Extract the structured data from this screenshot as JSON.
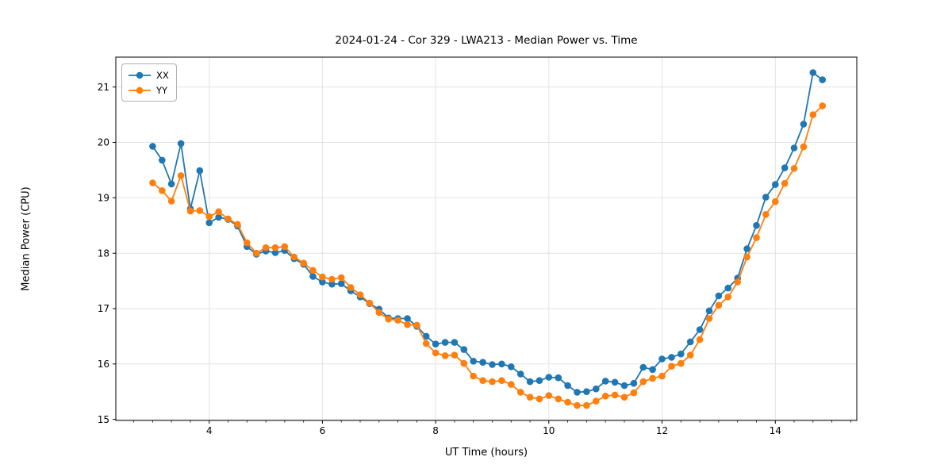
{
  "chart": {
    "title": "2024-01-24 - Cor 329 - LWA213 - Median Power vs. Time",
    "xlabel": "UT Time (hours)",
    "ylabel": "Median Power (CPU)",
    "legend": [
      {
        "label": "XX",
        "color": "#1f77b4"
      },
      {
        "label": "YY",
        "color": "#ff7f0e"
      }
    ]
  },
  "chart_data": {
    "type": "line",
    "title": "2024-01-24 - Cor 329 - LWA213 - Median Power vs. Time",
    "xlabel": "UT Time (hours)",
    "ylabel": "Median Power (CPU)",
    "xlim": [
      2.35,
      15.44
    ],
    "ylim": [
      14.98,
      21.54
    ],
    "x_major_ticks": [
      4,
      6,
      8,
      10,
      12,
      14
    ],
    "x_tick_labels": [
      "4",
      "6",
      "8",
      "10",
      "12",
      "14"
    ],
    "x_minor_tick_step": 0.3333,
    "y_major_ticks": [
      15,
      16,
      17,
      18,
      19,
      20,
      21
    ],
    "y_tick_labels": [
      "15",
      "16",
      "17",
      "18",
      "19",
      "20",
      "21"
    ],
    "grid": true,
    "grid_color": "#e3e3e3",
    "legend_position": "upper left",
    "marker": "circle",
    "x": [
      3.0,
      3.167,
      3.333,
      3.5,
      3.667,
      3.833,
      4.0,
      4.167,
      4.333,
      4.5,
      4.667,
      4.833,
      5.0,
      5.167,
      5.333,
      5.5,
      5.667,
      5.833,
      6.0,
      6.167,
      6.333,
      6.5,
      6.667,
      6.833,
      7.0,
      7.167,
      7.333,
      7.5,
      7.667,
      7.833,
      8.0,
      8.167,
      8.333,
      8.5,
      8.667,
      8.833,
      9.0,
      9.167,
      9.333,
      9.5,
      9.667,
      9.833,
      10.0,
      10.167,
      10.333,
      10.5,
      10.667,
      10.833,
      11.0,
      11.167,
      11.333,
      11.5,
      11.667,
      11.833,
      12.0,
      12.167,
      12.333,
      12.5,
      12.667,
      12.833,
      13.0,
      13.167,
      13.333,
      13.5,
      13.667,
      13.833,
      14.0,
      14.167,
      14.333,
      14.5,
      14.667,
      14.833
    ],
    "series": [
      {
        "name": "XX",
        "color": "#1f77b4",
        "values": [
          19.93,
          19.68,
          19.25,
          19.98,
          18.8,
          19.49,
          18.55,
          18.65,
          18.61,
          18.49,
          18.12,
          17.98,
          18.04,
          18.01,
          18.05,
          17.9,
          17.8,
          17.58,
          17.48,
          17.44,
          17.45,
          17.32,
          17.21,
          17.09,
          16.99,
          16.83,
          16.82,
          16.82,
          16.68,
          16.5,
          16.36,
          16.39,
          16.39,
          16.26,
          16.05,
          16.03,
          15.99,
          16.0,
          15.95,
          15.82,
          15.68,
          15.7,
          15.76,
          15.75,
          15.61,
          15.49,
          15.5,
          15.55,
          15.69,
          15.67,
          15.61,
          15.65,
          15.94,
          15.9,
          16.09,
          16.12,
          16.18,
          16.4,
          16.62,
          16.96,
          17.23,
          17.37,
          17.55,
          18.08,
          18.5,
          19.01,
          19.24,
          19.54,
          19.9,
          20.33,
          21.26,
          21.13
        ]
      },
      {
        "name": "YY",
        "color": "#ff7f0e",
        "values": [
          19.27,
          19.13,
          18.94,
          19.4,
          18.76,
          18.77,
          18.66,
          18.75,
          18.62,
          18.52,
          18.19,
          18.0,
          18.1,
          18.1,
          18.12,
          17.93,
          17.82,
          17.69,
          17.57,
          17.53,
          17.56,
          17.38,
          17.25,
          17.1,
          16.93,
          16.81,
          16.79,
          16.71,
          16.7,
          16.37,
          16.2,
          16.15,
          16.16,
          16.01,
          15.78,
          15.7,
          15.68,
          15.7,
          15.63,
          15.49,
          15.4,
          15.37,
          15.43,
          15.37,
          15.31,
          15.25,
          15.25,
          15.33,
          15.42,
          15.44,
          15.4,
          15.48,
          15.68,
          15.74,
          15.78,
          15.96,
          16.01,
          16.16,
          16.44,
          16.82,
          17.06,
          17.21,
          17.48,
          17.93,
          18.28,
          18.7,
          18.93,
          19.26,
          19.53,
          19.92,
          20.5,
          20.66
        ]
      }
    ]
  }
}
